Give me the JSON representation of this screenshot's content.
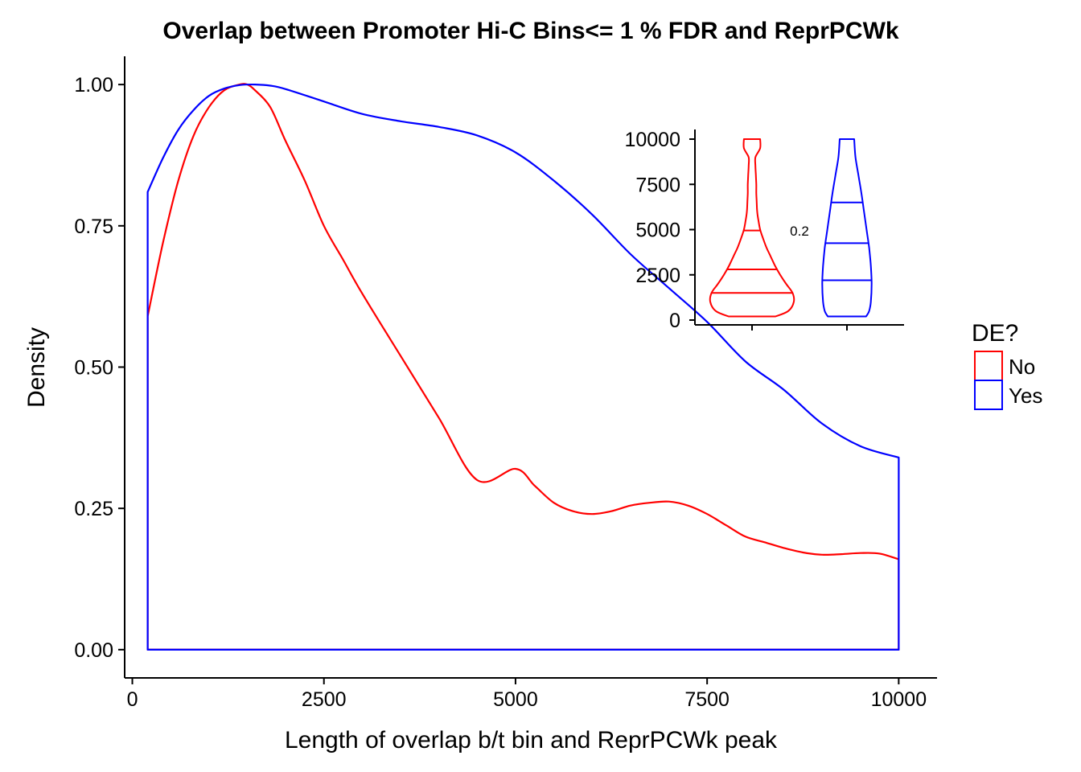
{
  "chart_data": {
    "main": {
      "type": "area",
      "title": "Overlap between Promoter Hi-C Bins<= 1 % FDR and ReprPCWk",
      "xlabel": "Length of overlap b/t bin and ReprPCWk peak",
      "ylabel": "Density",
      "xlim": [
        -100,
        10500
      ],
      "ylim": [
        -0.05,
        1.05
      ],
      "x_ticks": [
        0,
        2500,
        5000,
        7500,
        10000
      ],
      "x_tick_labels": [
        "0",
        "2500",
        "5000",
        "7500",
        "10000"
      ],
      "y_ticks": [
        0,
        0.25,
        0.5,
        0.75,
        1.0
      ],
      "y_tick_labels": [
        "0.00",
        "0.25",
        "0.50",
        "0.75",
        "1.00"
      ],
      "grid": false,
      "series": [
        {
          "name": "No",
          "color": "#FF0000",
          "x": [
            200,
            400,
            600,
            800,
            1000,
            1200,
            1400,
            1500,
            1600,
            1800,
            2000,
            2250,
            2500,
            2750,
            3000,
            3500,
            4000,
            4500,
            5000,
            5250,
            5500,
            5750,
            6000,
            6250,
            6500,
            6750,
            7000,
            7250,
            7500,
            7750,
            8000,
            8250,
            8500,
            8750,
            9000,
            9250,
            9500,
            9750,
            10000
          ],
          "values": [
            0.59,
            0.72,
            0.83,
            0.91,
            0.96,
            0.99,
            1.0,
            1.0,
            0.99,
            0.96,
            0.9,
            0.83,
            0.75,
            0.69,
            0.63,
            0.52,
            0.41,
            0.3,
            0.32,
            0.29,
            0.26,
            0.245,
            0.24,
            0.245,
            0.255,
            0.26,
            0.262,
            0.255,
            0.24,
            0.22,
            0.2,
            0.19,
            0.18,
            0.172,
            0.168,
            0.169,
            0.171,
            0.17,
            0.16
          ]
        },
        {
          "name": "Yes",
          "color": "#0000FF",
          "x": [
            200,
            400,
            600,
            800,
            1000,
            1200,
            1400,
            1600,
            1800,
            2000,
            2500,
            3000,
            3500,
            4000,
            4500,
            5000,
            5500,
            6000,
            6500,
            7000,
            7500,
            8000,
            8500,
            9000,
            9500,
            10000
          ],
          "values": [
            0.81,
            0.87,
            0.92,
            0.955,
            0.98,
            0.993,
            0.999,
            1.0,
            0.998,
            0.992,
            0.97,
            0.948,
            0.935,
            0.925,
            0.91,
            0.88,
            0.83,
            0.77,
            0.7,
            0.64,
            0.58,
            0.51,
            0.46,
            0.4,
            0.36,
            0.34
          ]
        }
      ]
    },
    "inset": {
      "type": "violin",
      "ylim": [
        -200,
        10500
      ],
      "y_ticks": [
        0,
        2500,
        5000,
        7500,
        10000
      ],
      "y_tick_labels": [
        "0",
        "2500",
        "5000",
        "7500",
        "10000"
      ],
      "annotation": "0.2",
      "groups": [
        {
          "name": "No",
          "color": "#FF0000",
          "quantiles": [
            1500,
            2800,
            4950
          ],
          "profile": [
            [
              200,
              0.55
            ],
            [
              500,
              0.85
            ],
            [
              1000,
              0.98
            ],
            [
              1500,
              0.95
            ],
            [
              2000,
              0.8
            ],
            [
              2500,
              0.66
            ],
            [
              3000,
              0.54
            ],
            [
              3500,
              0.44
            ],
            [
              4000,
              0.34
            ],
            [
              4500,
              0.26
            ],
            [
              5000,
              0.19
            ],
            [
              5500,
              0.15
            ],
            [
              6000,
              0.12
            ],
            [
              6500,
              0.11
            ],
            [
              7000,
              0.1
            ],
            [
              7500,
              0.1
            ],
            [
              8000,
              0.09
            ],
            [
              8500,
              0.08
            ],
            [
              9000,
              0.08
            ],
            [
              9500,
              0.19
            ],
            [
              10000,
              0.19
            ]
          ]
        },
        {
          "name": "Yes",
          "color": "#0000FF",
          "quantiles": [
            2200,
            4250,
            6500
          ],
          "profile": [
            [
              200,
              0.45
            ],
            [
              500,
              0.52
            ],
            [
              1000,
              0.56
            ],
            [
              2000,
              0.58
            ],
            [
              3000,
              0.56
            ],
            [
              4000,
              0.52
            ],
            [
              5000,
              0.46
            ],
            [
              6000,
              0.4
            ],
            [
              7000,
              0.34
            ],
            [
              8000,
              0.27
            ],
            [
              9000,
              0.2
            ],
            [
              10000,
              0.17
            ]
          ]
        }
      ]
    },
    "legend": {
      "title": "DE?",
      "placement": "right",
      "entries": [
        {
          "label": "No",
          "color": "#FF0000"
        },
        {
          "label": "Yes",
          "color": "#0000FF"
        }
      ]
    }
  }
}
